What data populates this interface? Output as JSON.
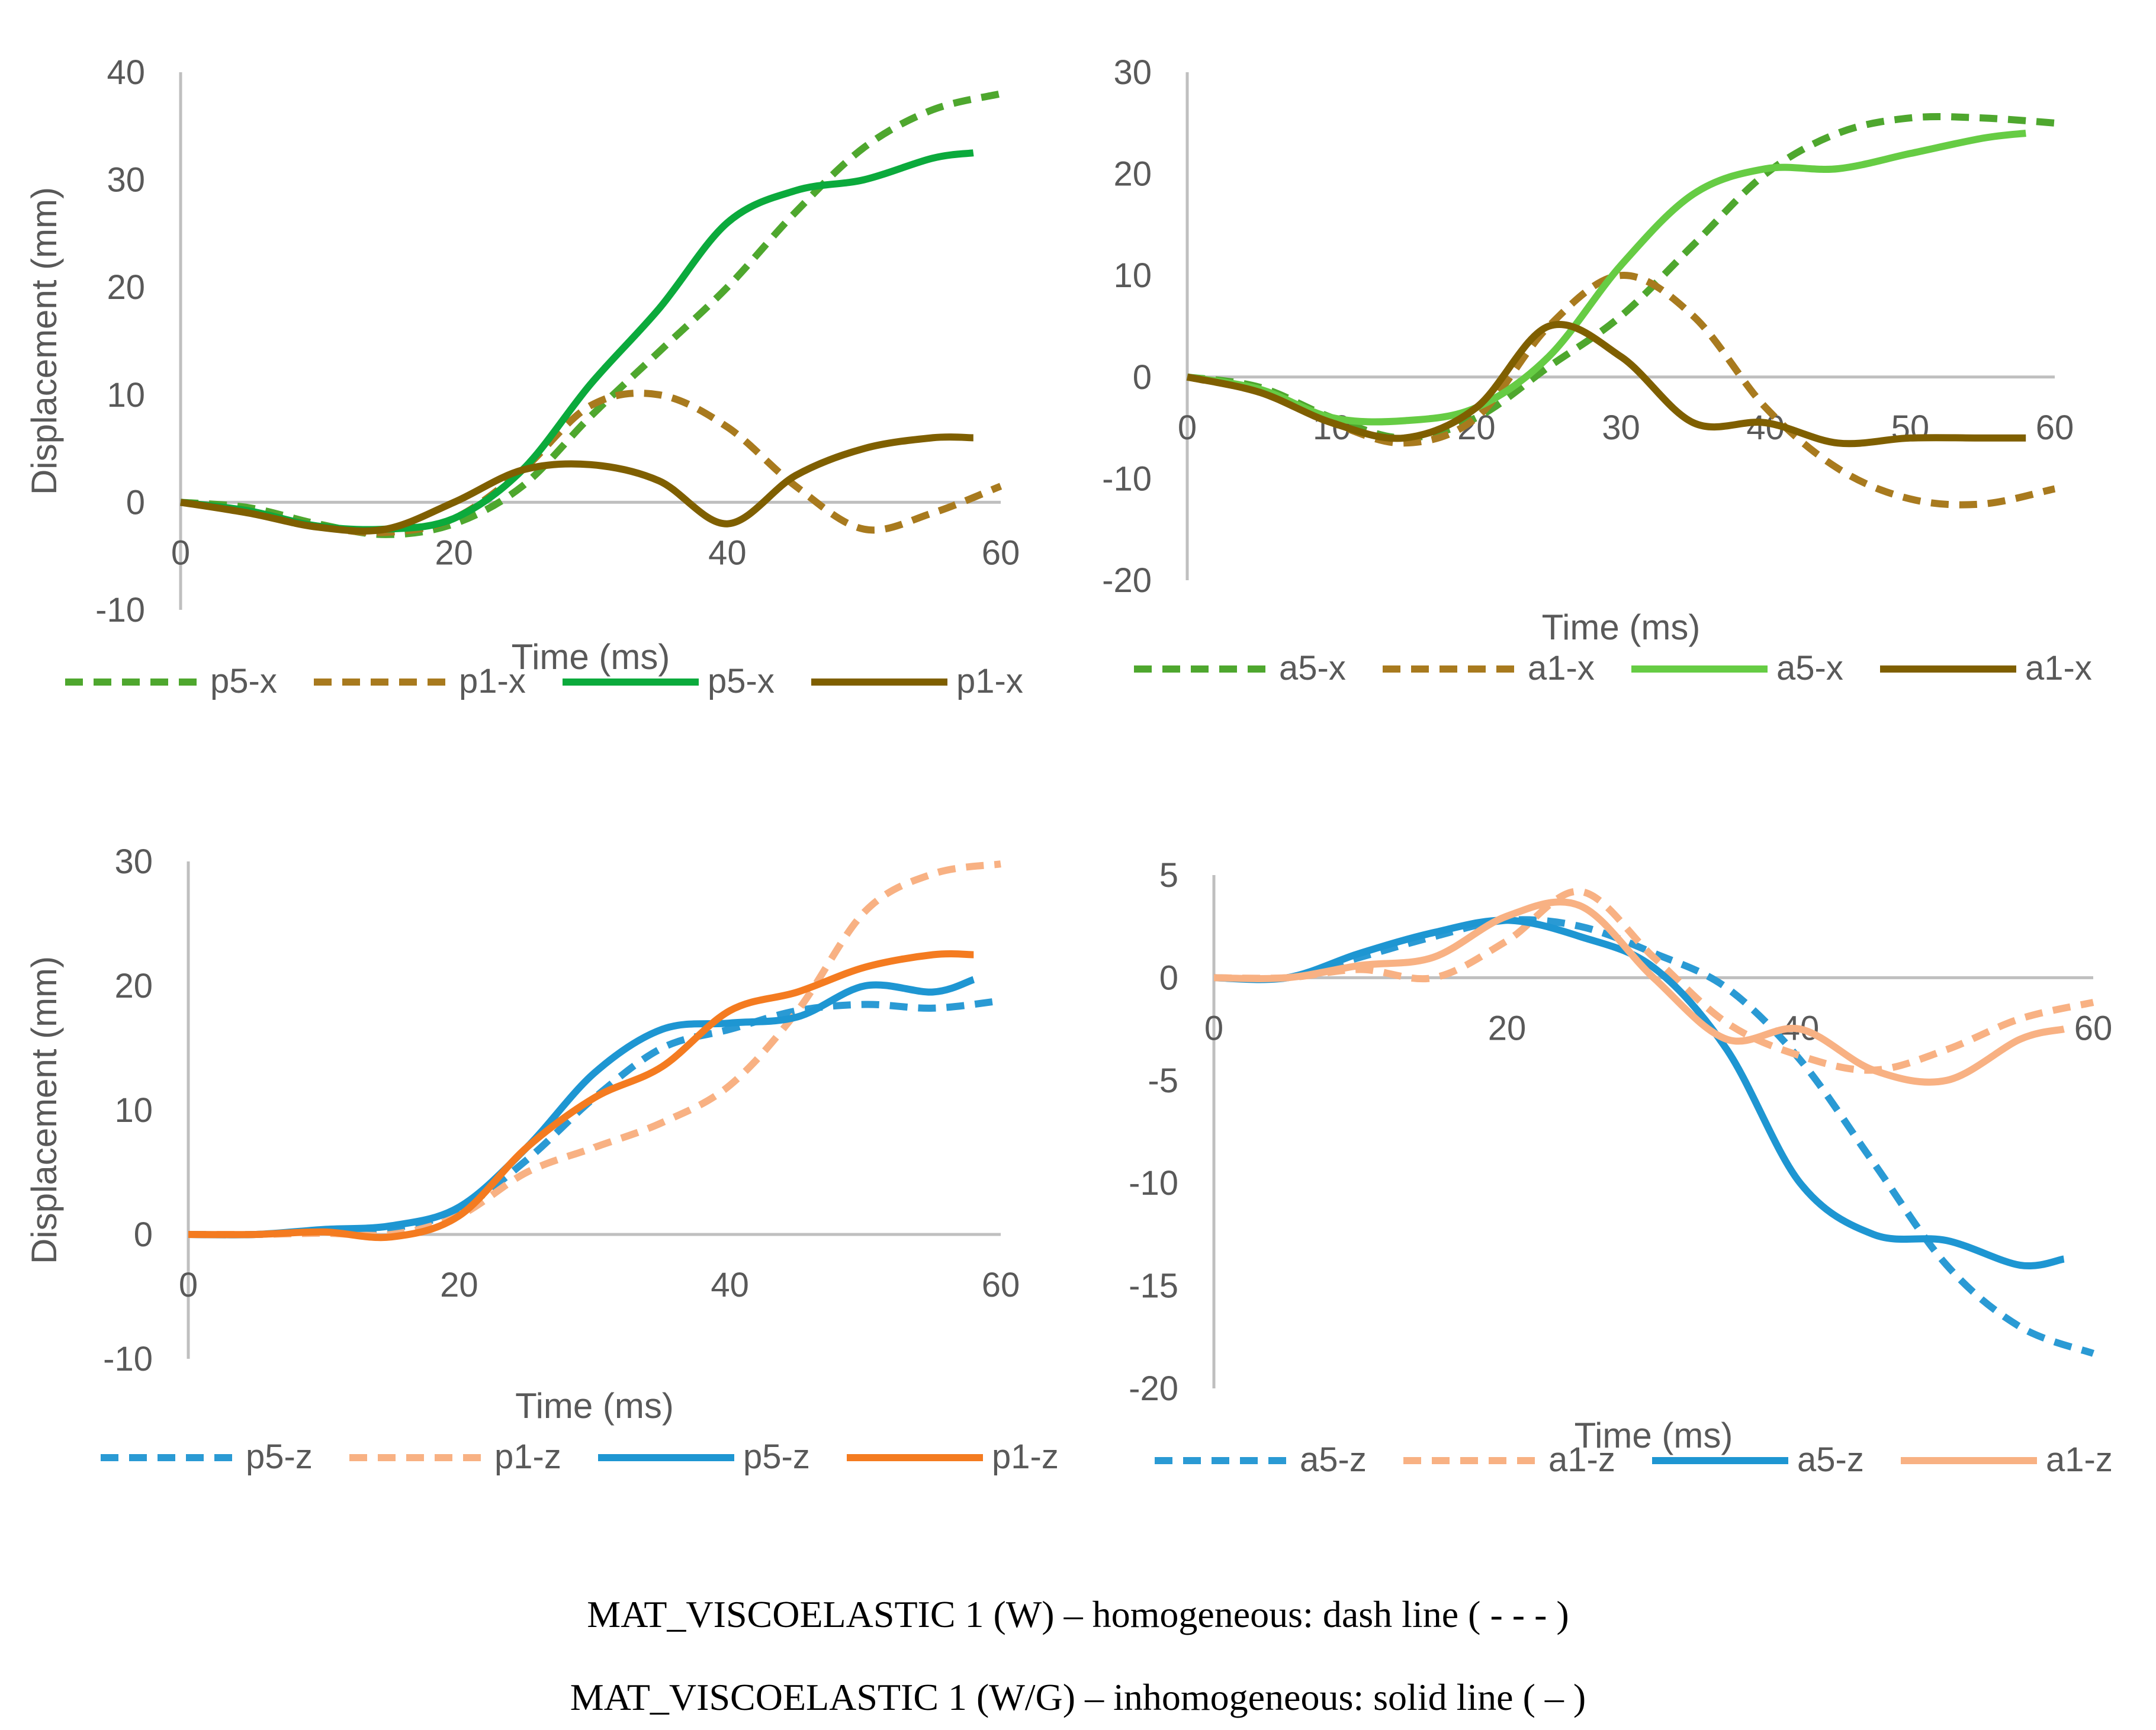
{
  "chart_data": [
    {
      "type": "line",
      "xlabel": "Time (ms)",
      "ylabel": "Displacement (mm)",
      "xlim": [
        0,
        60
      ],
      "ylim": [
        -10,
        40
      ],
      "xticks": [
        0,
        20,
        40,
        60
      ],
      "yticks": [
        -10,
        0,
        10,
        20,
        30,
        40
      ],
      "legend_position": "bottom",
      "grid": false,
      "series": [
        {
          "name": "p5-x",
          "style": "dash",
          "color": "#4EA72E",
          "x": [
            0,
            5,
            10,
            15,
            20,
            25,
            30,
            35,
            40,
            45,
            50,
            55,
            60
          ],
          "y": [
            0,
            -0.5,
            -2,
            -3,
            -2,
            1.5,
            8,
            14,
            20,
            27,
            33,
            36.5,
            38
          ]
        },
        {
          "name": "p1-x",
          "style": "dash",
          "color": "#A87A1E",
          "x": [
            0,
            5,
            10,
            15,
            20,
            25,
            30,
            35,
            40,
            45,
            50,
            55,
            60
          ],
          "y": [
            0,
            -0.8,
            -2.2,
            -2.8,
            -1.5,
            3,
            9,
            10,
            7,
            1.5,
            -2.5,
            -1,
            1.5
          ]
        },
        {
          "name": "p5-x",
          "style": "solid",
          "color": "#0BAA3C",
          "x": [
            0,
            5,
            10,
            15,
            20,
            25,
            30,
            35,
            40,
            45,
            50,
            55,
            58
          ],
          "y": [
            0,
            -0.8,
            -2.2,
            -2.5,
            -1.5,
            3,
            11,
            18,
            26,
            29,
            30,
            32,
            32.5
          ]
        },
        {
          "name": "p1-x",
          "style": "solid",
          "color": "#7F5F00",
          "x": [
            0,
            5,
            10,
            15,
            20,
            25,
            30,
            35,
            40,
            45,
            50,
            55,
            58
          ],
          "y": [
            0,
            -1,
            -2.3,
            -2.5,
            0,
            3,
            3.5,
            2,
            -2,
            2.5,
            5,
            6,
            6
          ]
        }
      ]
    },
    {
      "type": "line",
      "xlabel": "Time (ms)",
      "ylabel": "",
      "xlim": [
        0,
        60
      ],
      "ylim": [
        -20,
        30
      ],
      "xticks": [
        0,
        10,
        20,
        30,
        40,
        50,
        60
      ],
      "yticks": [
        -20,
        -10,
        0,
        10,
        20,
        30
      ],
      "legend_position": "bottom",
      "grid": false,
      "series": [
        {
          "name": "a5-x",
          "style": "dash",
          "color": "#4EA72E",
          "x": [
            0,
            5,
            10,
            15,
            20,
            25,
            30,
            35,
            40,
            45,
            50,
            55,
            60
          ],
          "y": [
            0,
            -1,
            -4,
            -6,
            -4,
            1,
            6,
            13,
            20,
            24,
            25.5,
            25.5,
            25
          ]
        },
        {
          "name": "a1-x",
          "style": "dash",
          "color": "#A87A1E",
          "x": [
            0,
            5,
            10,
            15,
            20,
            25,
            30,
            35,
            40,
            45,
            50,
            55,
            60
          ],
          "y": [
            0,
            -1.5,
            -4.5,
            -6.5,
            -4,
            5,
            10,
            6,
            -3,
            -9,
            -12,
            -12.5,
            -11
          ]
        },
        {
          "name": "a5-x",
          "style": "solid",
          "color": "#66CC44",
          "x": [
            0,
            5,
            10,
            15,
            20,
            25,
            30,
            35,
            40,
            45,
            50,
            55,
            58
          ],
          "y": [
            0,
            -1.2,
            -4,
            -4.3,
            -3,
            2,
            11,
            18,
            20.5,
            20.5,
            22,
            23.5,
            24
          ]
        },
        {
          "name": "a1-x",
          "style": "solid",
          "color": "#7F5F00",
          "x": [
            0,
            5,
            10,
            15,
            20,
            25,
            30,
            35,
            40,
            45,
            50,
            55,
            58
          ],
          "y": [
            0,
            -1.5,
            -4.5,
            -6,
            -3,
            5,
            2,
            -4.5,
            -4.5,
            -6.5,
            -6,
            -6,
            -6
          ]
        }
      ]
    },
    {
      "type": "line",
      "xlabel": "Time (ms)",
      "ylabel": "Displacement (mm)",
      "xlim": [
        0,
        60
      ],
      "ylim": [
        -10,
        30
      ],
      "xticks": [
        0,
        20,
        40,
        60
      ],
      "yticks": [
        -10,
        0,
        10,
        20,
        30
      ],
      "legend_position": "bottom",
      "grid": false,
      "series": [
        {
          "name": "p5-z",
          "style": "dash",
          "color": "#2A9AD4",
          "x": [
            0,
            5,
            10,
            15,
            20,
            25,
            30,
            35,
            40,
            45,
            50,
            55,
            60
          ],
          "y": [
            0,
            0,
            0.3,
            0.5,
            2,
            6,
            11,
            15,
            16.5,
            18,
            18.5,
            18.2,
            18.8
          ]
        },
        {
          "name": "p1-z",
          "style": "dash",
          "color": "#F8B183",
          "x": [
            0,
            5,
            10,
            15,
            20,
            25,
            30,
            35,
            40,
            45,
            50,
            55,
            60
          ],
          "y": [
            0,
            0,
            0.1,
            0,
            1.5,
            5,
            7,
            9,
            12,
            18,
            26,
            29,
            29.8
          ]
        },
        {
          "name": "p5-z",
          "style": "solid",
          "color": "#1E96D2",
          "x": [
            0,
            5,
            10,
            15,
            20,
            25,
            30,
            35,
            40,
            45,
            50,
            55,
            58
          ],
          "y": [
            0,
            0,
            0.4,
            0.7,
            2.2,
            7,
            13,
            16.5,
            17,
            17.5,
            20,
            19.5,
            20.5
          ]
        },
        {
          "name": "p1-z",
          "style": "solid",
          "color": "#F47B20",
          "x": [
            0,
            5,
            10,
            15,
            20,
            25,
            30,
            35,
            40,
            45,
            50,
            55,
            58
          ],
          "y": [
            0,
            0,
            0.2,
            -0.2,
            1.5,
            7,
            11,
            13.5,
            18,
            19.5,
            21.5,
            22.5,
            22.5
          ]
        }
      ]
    },
    {
      "type": "line",
      "xlabel": "Time (ms)",
      "ylabel": "",
      "xlim": [
        0,
        60
      ],
      "ylim": [
        -20,
        5
      ],
      "xticks": [
        0,
        20,
        40,
        60
      ],
      "yticks": [
        -20,
        -15,
        -10,
        -5,
        0,
        5
      ],
      "legend_position": "bottom",
      "grid": false,
      "series": [
        {
          "name": "a5-z",
          "style": "dash",
          "color": "#2A9AD4",
          "x": [
            0,
            5,
            10,
            15,
            20,
            25,
            30,
            35,
            40,
            45,
            50,
            55,
            60
          ],
          "y": [
            0,
            0,
            1,
            2,
            2.8,
            2.5,
            1.2,
            -0.5,
            -4,
            -9,
            -14,
            -17,
            -18.3
          ]
        },
        {
          "name": "a1-z",
          "style": "dash",
          "color": "#F8B183",
          "x": [
            0,
            5,
            10,
            15,
            20,
            25,
            30,
            35,
            40,
            45,
            50,
            55,
            60
          ],
          "y": [
            0,
            0,
            0.4,
            0,
            1.8,
            4.2,
            1,
            -2.2,
            -3.8,
            -4.5,
            -3.5,
            -2,
            -1.2
          ]
        },
        {
          "name": "a5-z",
          "style": "solid",
          "color": "#1E96D2",
          "x": [
            0,
            5,
            10,
            15,
            20,
            25,
            30,
            35,
            40,
            45,
            50,
            55,
            58
          ],
          "y": [
            0,
            0,
            1.2,
            2.2,
            2.8,
            2,
            0.5,
            -3.5,
            -10,
            -12.5,
            -12.8,
            -14,
            -13.7
          ]
        },
        {
          "name": "a1-z",
          "style": "solid",
          "color": "#F8B183",
          "x": [
            0,
            5,
            10,
            15,
            20,
            25,
            30,
            35,
            40,
            45,
            50,
            55,
            58
          ],
          "y": [
            0,
            0,
            0.6,
            1,
            3,
            3.5,
            0,
            -3,
            -2.5,
            -4.5,
            -5,
            -3,
            -2.5
          ]
        }
      ]
    }
  ],
  "captions": [
    "MAT_VISCOELASTIC 1 (W) – homogeneous: dash line ( - - - )",
    "MAT_VISCOELASTIC 1 (W/G) – inhomogeneous: solid line ( – )"
  ]
}
